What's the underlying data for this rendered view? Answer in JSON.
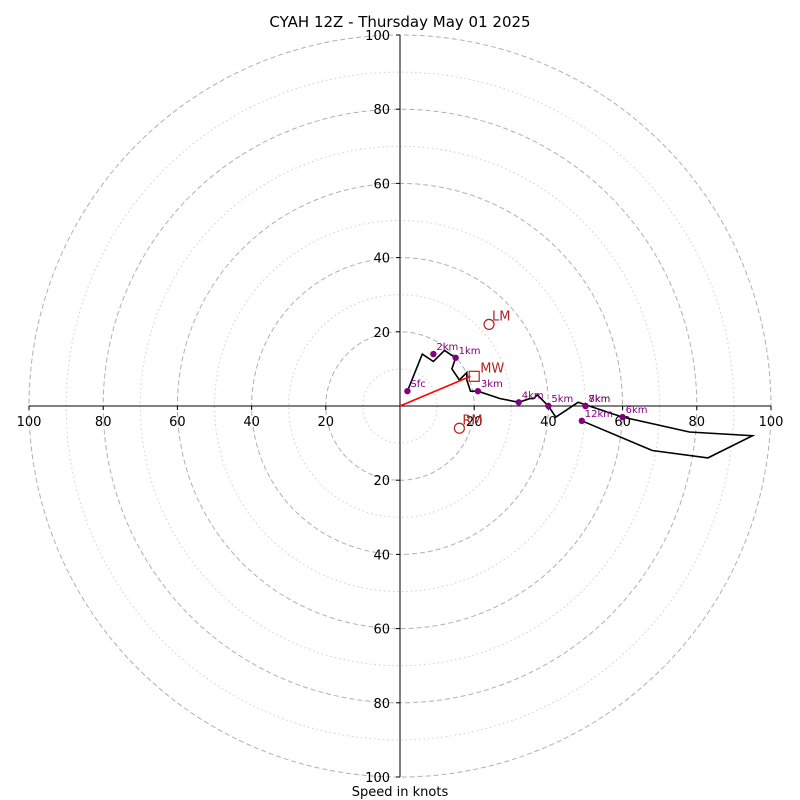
{
  "chart_data": {
    "type": "hodograph",
    "title": "CYAH 12Z - Thursday May 01 2025",
    "xlabel": "Speed in knots",
    "ylabel": "",
    "range": [
      -100,
      100
    ],
    "rings": [
      20,
      40,
      60,
      80,
      100
    ],
    "minor_rings": [
      10,
      30,
      50,
      70,
      90
    ],
    "ticks": {
      "x_left": [
        "100",
        "80",
        "60",
        "40",
        "20"
      ],
      "x_right": [
        "20",
        "40",
        "60",
        "80",
        "100"
      ],
      "y_top": [
        "20",
        "40",
        "60",
        "80",
        "100"
      ],
      "y_bottom": [
        "20",
        "40",
        "60",
        "80",
        "100"
      ]
    },
    "hodograph_trace": [
      [
        2,
        4
      ],
      [
        6,
        14
      ],
      [
        9,
        12
      ],
      [
        12,
        15
      ],
      [
        15,
        13
      ],
      [
        14,
        10
      ],
      [
        16,
        7
      ],
      [
        18,
        9
      ],
      [
        18,
        7
      ],
      [
        19,
        4
      ],
      [
        21,
        4
      ],
      [
        27,
        2
      ],
      [
        32,
        1
      ],
      [
        35,
        2
      ],
      [
        36,
        2
      ],
      [
        37,
        3
      ],
      [
        39,
        1
      ],
      [
        40,
        0
      ],
      [
        42,
        -3
      ],
      [
        45,
        -1
      ],
      [
        48,
        1
      ],
      [
        51,
        0
      ],
      [
        60,
        -3
      ],
      [
        78,
        -7
      ],
      [
        95,
        -8
      ],
      [
        83,
        -14
      ],
      [
        68,
        -12
      ],
      [
        49,
        -4
      ]
    ],
    "height_labels": [
      {
        "label": "Sfc",
        "u": 2,
        "v": 4
      },
      {
        "label": "1km",
        "u": 15,
        "v": 13
      },
      {
        "label": "2km",
        "u": 9,
        "v": 14
      },
      {
        "label": "3km",
        "u": 21,
        "v": 4
      },
      {
        "label": "4km",
        "u": 32,
        "v": 1
      },
      {
        "label": "5km",
        "u": 40,
        "v": 0
      },
      {
        "label": "6km",
        "u": 60,
        "v": -3
      },
      {
        "label": "7km",
        "u": 50,
        "v": 0
      },
      {
        "label": "8km",
        "u": 50,
        "v": 0
      },
      {
        "label": "12km",
        "u": 49,
        "v": -4
      }
    ],
    "markers": [
      {
        "label": "LM",
        "u": 24,
        "v": 22
      },
      {
        "label": "RM",
        "u": 16,
        "v": -6
      },
      {
        "label": "MW",
        "u": 20,
        "v": 8
      }
    ],
    "shear_vector": {
      "from": [
        0,
        0
      ],
      "to": [
        19,
        8
      ]
    },
    "colors": {
      "trace": "#000000",
      "height_points": "#800080",
      "markers": "#b22222",
      "shear_vector": "#ff0000",
      "rings": "#b0b0b0"
    }
  }
}
